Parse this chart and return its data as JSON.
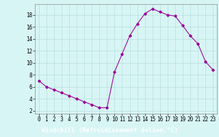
{
  "x": [
    0,
    1,
    2,
    3,
    4,
    5,
    6,
    7,
    8,
    9,
    10,
    11,
    12,
    13,
    14,
    15,
    16,
    17,
    18,
    19,
    20,
    21,
    22,
    23
  ],
  "y": [
    7.0,
    6.0,
    5.5,
    5.0,
    4.5,
    4.0,
    3.5,
    3.0,
    2.5,
    2.5,
    8.5,
    11.5,
    14.5,
    16.5,
    18.2,
    19.0,
    18.5,
    18.0,
    17.8,
    16.2,
    14.5,
    13.2,
    10.2,
    8.8
  ],
  "line_color": "#990099",
  "marker": "D",
  "marker_size": 1.8,
  "line_width": 0.8,
  "bg_color": "#d8f5f5",
  "grid_color": "#b8dede",
  "xlabel": "Windchill (Refroidissement éolien,°C)",
  "xlabel_bg": "#800080",
  "xlabel_fg": "#ffffff",
  "xlabel_fontsize": 6.5,
  "ytick_labels": [
    "2",
    "4",
    "6",
    "8",
    "10",
    "12",
    "14",
    "16",
    "18"
  ],
  "ytick_vals": [
    2,
    4,
    6,
    8,
    10,
    12,
    14,
    16,
    18
  ],
  "xtick_vals": [
    0,
    1,
    2,
    3,
    4,
    5,
    6,
    7,
    8,
    9,
    10,
    11,
    12,
    13,
    14,
    15,
    16,
    17,
    18,
    19,
    20,
    21,
    22,
    23
  ],
  "xlim": [
    -0.5,
    23.5
  ],
  "ylim": [
    1.5,
    19.8
  ],
  "tick_fontsize": 5.5,
  "spine_color": "#888888"
}
